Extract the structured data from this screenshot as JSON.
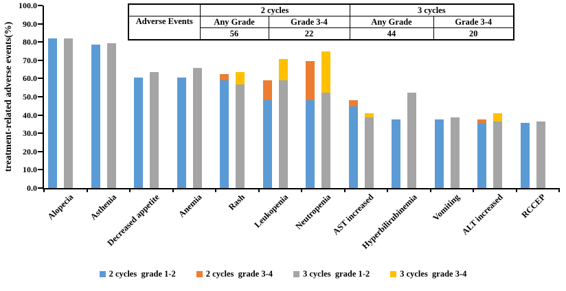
{
  "figure": {
    "background": "#ffffff",
    "y_axis_title": "treatment-related adverse events(%)"
  },
  "summary_table": {
    "group_headers": [
      "2 cycles",
      "3 cycles"
    ],
    "row_header": "Adverse Events",
    "col_headers": [
      "Any Grade",
      "Grade 3-4",
      "Any Grade",
      "Grade 3-4"
    ],
    "values": [
      "56",
      "22",
      "44",
      "20"
    ]
  },
  "chart_data": {
    "type": "bar",
    "subtype": "grouped-stacked-columns",
    "title": "",
    "xlabel": "",
    "ylabel": "treatment-related adverse events(%)",
    "ylim": [
      0,
      100
    ],
    "ytick_step": 10,
    "ytick_decimals": 1,
    "grid": false,
    "legend_position": "bottom",
    "axis_color": "#000000",
    "categories": [
      "Alopecia",
      "Asthenia",
      "Decreased appetite",
      "Anemia",
      "Rash",
      "Leukopenia",
      "Neutropenia",
      "AST increased",
      "Hyperbilirubinemia",
      "Vomiting",
      "ALT increased",
      "RCCEP"
    ],
    "series": [
      {
        "name": "2 cycles  grade 1-2",
        "color": "#5B9BD5",
        "stack": "2 cycles",
        "values": [
          82.1,
          78.6,
          60.7,
          60.7,
          58.9,
          48.2,
          48.2,
          44.6,
          37.5,
          37.5,
          35.7,
          35.7
        ]
      },
      {
        "name": "2 cycles  grade 3-4",
        "color": "#ED7D31",
        "stack": "2 cycles",
        "values": [
          0,
          0,
          0,
          0,
          3.6,
          10.7,
          21.4,
          3.6,
          0,
          0,
          1.8,
          0
        ]
      },
      {
        "name": "3 cycles  grade 1-2",
        "color": "#A5A5A5",
        "stack": "3 cycles",
        "values": [
          81.8,
          79.5,
          63.6,
          65.9,
          56.8,
          59.1,
          52.3,
          38.6,
          52.3,
          38.6,
          36.4,
          36.4
        ]
      },
      {
        "name": "3 cycles  grade 3-4",
        "color": "#FFC000",
        "stack": "3 cycles",
        "values": [
          0,
          0,
          0,
          0,
          6.8,
          11.4,
          22.7,
          2.3,
          0,
          0,
          4.5,
          0
        ]
      }
    ]
  }
}
